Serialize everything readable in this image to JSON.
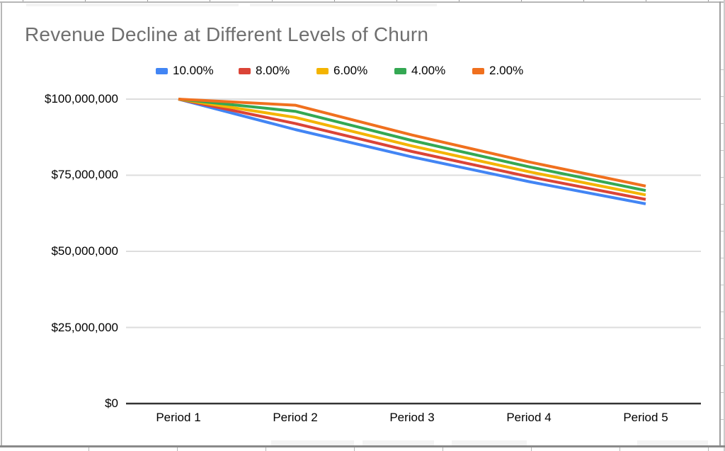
{
  "title": "Revenue Decline at Different Levels of Churn",
  "chart_data": {
    "type": "line",
    "title": "Revenue Decline at Different Levels of Churn",
    "categories": [
      "Period 1",
      "Period 2",
      "Period 3",
      "Period 4",
      "Period 5"
    ],
    "series": [
      {
        "name": "10.00%",
        "color": "#4285F4",
        "values": [
          100000000,
          90000000,
          81000000,
          72900000,
          65610000
        ]
      },
      {
        "name": "8.00%",
        "color": "#DB4437",
        "values": [
          100000000,
          92000000,
          82800000,
          74520000,
          67068000
        ]
      },
      {
        "name": "6.00%",
        "color": "#F4B400",
        "values": [
          100000000,
          94000000,
          84600000,
          76140000,
          68526000
        ]
      },
      {
        "name": "4.00%",
        "color": "#34A853",
        "values": [
          100000000,
          96000000,
          86400000,
          77760000,
          69984000
        ]
      },
      {
        "name": "2.00%",
        "color": "#F0701E",
        "values": [
          100000000,
          98000000,
          88200000,
          79380000,
          71442000
        ]
      }
    ],
    "yticks": [
      "$0",
      "$25,000,000",
      "$50,000,000",
      "$75,000,000",
      "$100,000,000"
    ],
    "ylim": [
      0,
      100000000
    ],
    "grid": "horizontal",
    "legend_position": "top",
    "colors": {
      "title_text": "#6f6f6f",
      "axis_text": "#000000",
      "gridline": "#dddddd",
      "baseline": "#333333"
    }
  }
}
